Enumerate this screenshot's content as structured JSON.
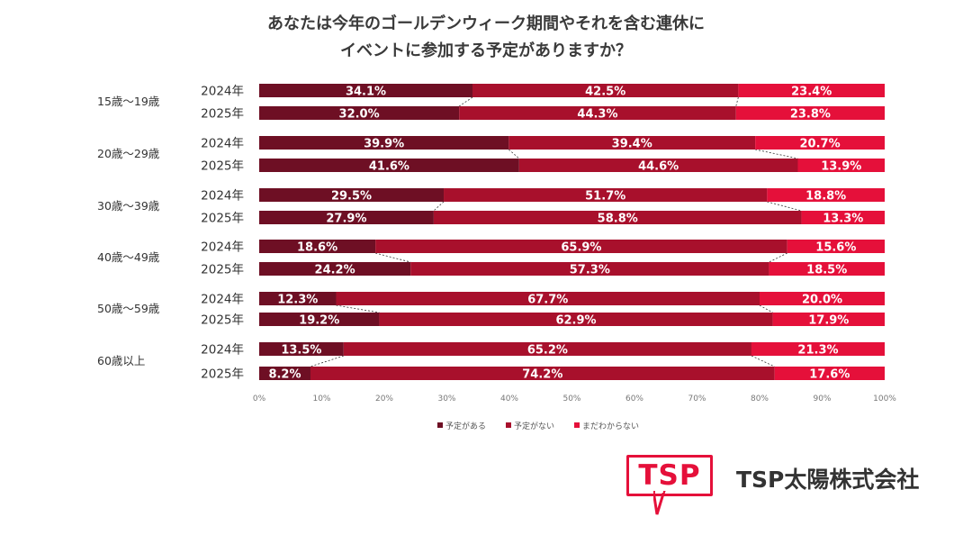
{
  "chart_data": {
    "type": "stacked-horizontal-bar-100",
    "title_lines": [
      "あなたは今年のゴールデンウィーク期間やそれを含む連休に",
      "イベントに参加する予定がありますか？"
    ],
    "series_names": [
      "予定がある",
      "予定がない",
      "まだわからない"
    ],
    "colors": [
      "#6e0f24",
      "#a8102c",
      "#e5103a"
    ],
    "groups": [
      {
        "label": "15歳〜19歳",
        "rows": [
          {
            "year": "2024年",
            "values": [
              34.1,
              42.5,
              23.4
            ],
            "labels": [
              "34.1%",
              "42.5%",
              "23.4%"
            ]
          },
          {
            "year": "2025年",
            "values": [
              32.0,
              44.3,
              23.8
            ],
            "labels": [
              "32.0%",
              "44.3%",
              "23.8%"
            ]
          }
        ]
      },
      {
        "label": "20歳〜29歳",
        "rows": [
          {
            "year": "2024年",
            "values": [
              39.9,
              39.4,
              20.7
            ],
            "labels": [
              "39.9%",
              "39.4%",
              "20.7%"
            ]
          },
          {
            "year": "2025年",
            "values": [
              41.6,
              44.6,
              13.9
            ],
            "labels": [
              "41.6%",
              "44.6%",
              "13.9%"
            ]
          }
        ]
      },
      {
        "label": "30歳〜39歳",
        "rows": [
          {
            "year": "2024年",
            "values": [
              29.5,
              51.7,
              18.8
            ],
            "labels": [
              "29.5%",
              "51.7%",
              "18.8%"
            ]
          },
          {
            "year": "2025年",
            "values": [
              27.9,
              58.8,
              13.3
            ],
            "labels": [
              "27.9%",
              "58.8%",
              "13.3%"
            ]
          }
        ]
      },
      {
        "label": "40歳〜49歳",
        "rows": [
          {
            "year": "2024年",
            "values": [
              18.6,
              65.9,
              15.6
            ],
            "labels": [
              "18.6%",
              "65.9%",
              "15.6%"
            ]
          },
          {
            "year": "2025年",
            "values": [
              24.2,
              57.3,
              18.5
            ],
            "labels": [
              "24.2%",
              "57.3%",
              "18.5%"
            ]
          }
        ]
      },
      {
        "label": "50歳〜59歳",
        "rows": [
          {
            "year": "2024年",
            "values": [
              12.3,
              67.7,
              20.0
            ],
            "labels": [
              "12.3%",
              "67.7%",
              "20.0%"
            ]
          },
          {
            "year": "2025年",
            "values": [
              19.2,
              62.9,
              17.9
            ],
            "labels": [
              "19.2%",
              "62.9%",
              "17.9%"
            ]
          }
        ]
      },
      {
        "label": "60歳以上",
        "rows": [
          {
            "year": "2024年",
            "values": [
              13.5,
              65.2,
              21.3
            ],
            "labels": [
              "13.5%",
              "65.2%",
              "21.3%"
            ]
          },
          {
            "year": "2025年",
            "values": [
              8.2,
              74.2,
              17.6
            ],
            "labels": [
              "8.2%",
              "74.2%",
              "17.6%"
            ]
          }
        ]
      }
    ],
    "x_ticks": [
      "0%",
      "10%",
      "20%",
      "30%",
      "40%",
      "50%",
      "60%",
      "70%",
      "80%",
      "90%",
      "100%"
    ],
    "xlim": [
      0,
      100
    ],
    "legend_position": "bottom",
    "connector_lines": "dashed"
  },
  "logo": {
    "mark": "TSP",
    "company": "TSP太陽株式会社",
    "color": "#e5103a"
  }
}
